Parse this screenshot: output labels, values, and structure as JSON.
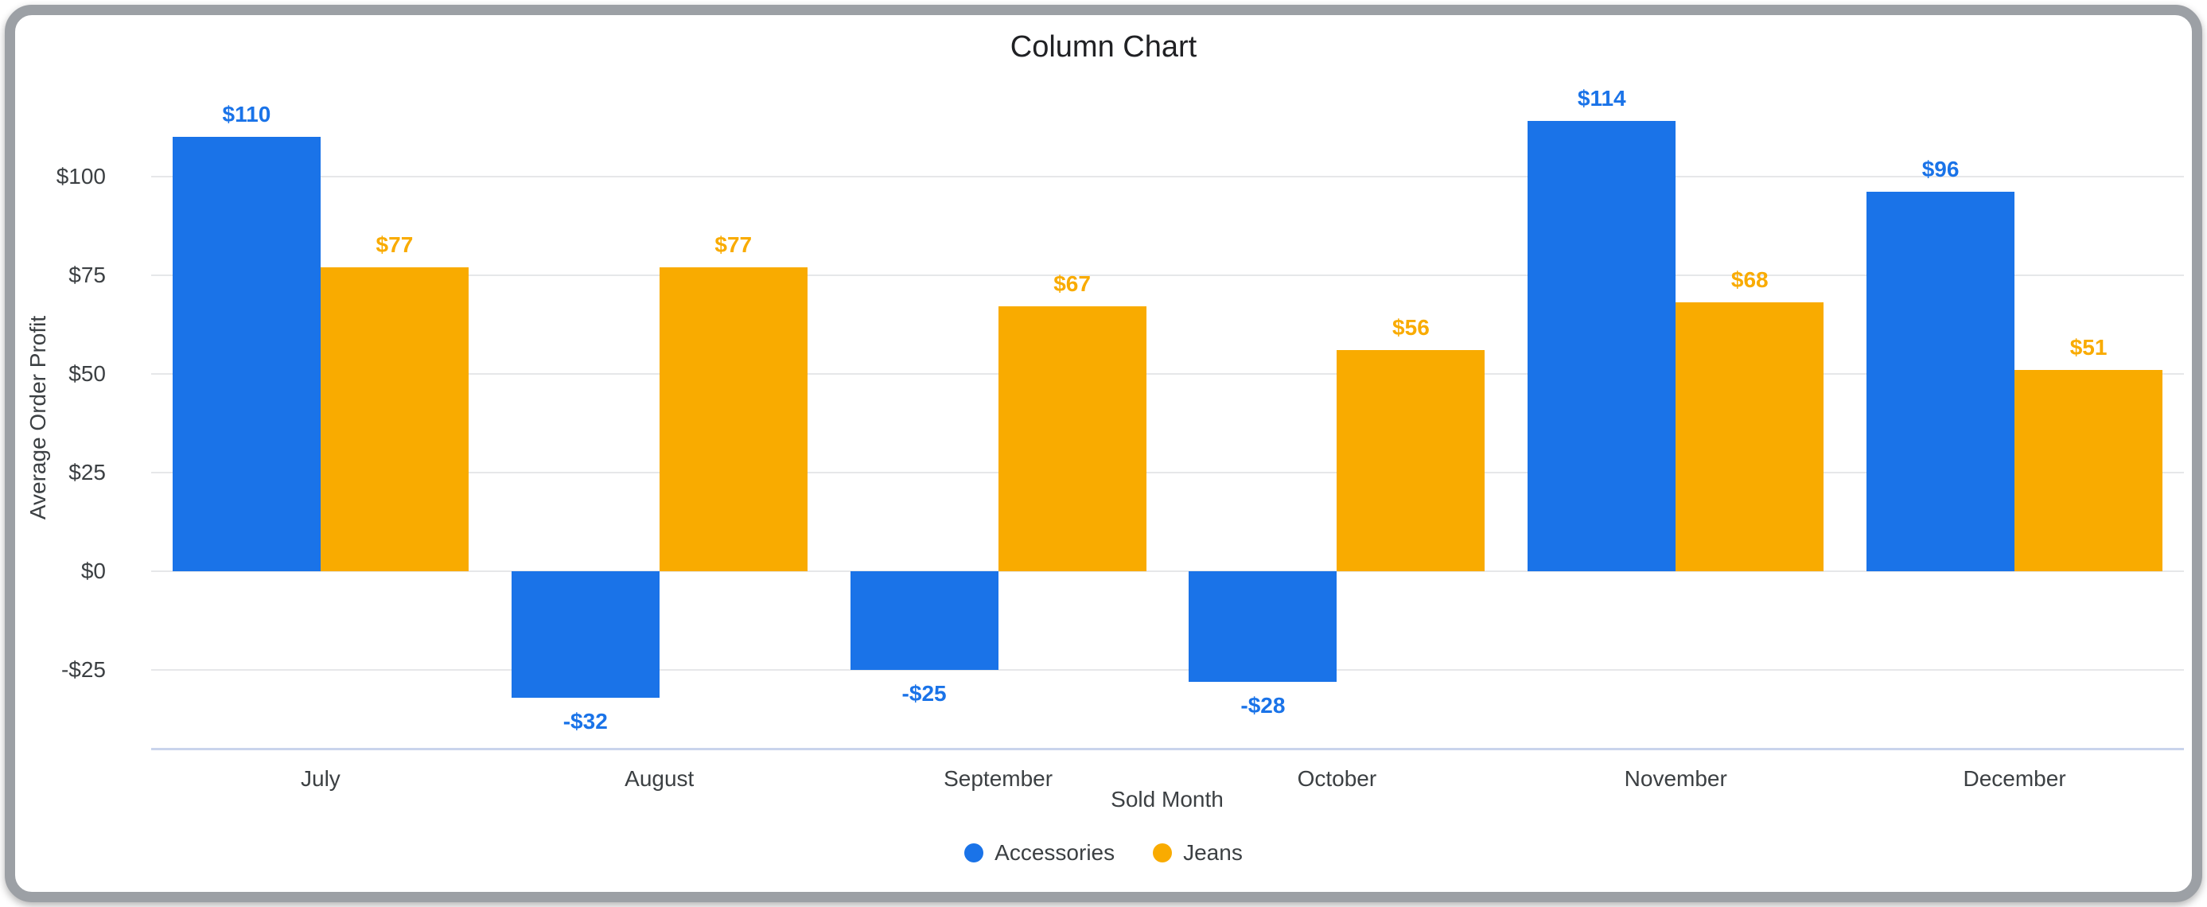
{
  "appearance": {
    "frame_color": "#9ca0a5",
    "background_color": "#ffffff",
    "title_color": "#202124",
    "axis_text_color": "#3c4043",
    "grid_color": "#e6e7e9",
    "baseline_color": "#c9d4ec"
  },
  "chart_data": {
    "type": "bar",
    "title": "Column Chart",
    "xlabel": "Sold Month",
    "ylabel": "Average Order Profit",
    "categories": [
      "July",
      "August",
      "September",
      "October",
      "November",
      "December"
    ],
    "series": [
      {
        "name": "Accessories",
        "color": "#1a73e8",
        "values": [
          110,
          -32,
          -25,
          -28,
          114,
          96
        ],
        "labels": [
          "$110",
          "-$32",
          "-$25",
          "-$28",
          "$114",
          "$96"
        ]
      },
      {
        "name": "Jeans",
        "color": "#f9ab00",
        "values": [
          77,
          77,
          67,
          56,
          68,
          51
        ],
        "labels": [
          "$77",
          "$77",
          "$67",
          "$56",
          "$68",
          "$51"
        ]
      }
    ],
    "y_ticks": [
      {
        "value": 100,
        "label": "$100"
      },
      {
        "value": 75,
        "label": "$75"
      },
      {
        "value": 50,
        "label": "$50"
      },
      {
        "value": 25,
        "label": "$25"
      },
      {
        "value": 0,
        "label": "$0"
      },
      {
        "value": -25,
        "label": "-$25"
      }
    ],
    "ylim": [
      -45,
      124
    ],
    "grid": true,
    "legend_position": "bottom"
  }
}
